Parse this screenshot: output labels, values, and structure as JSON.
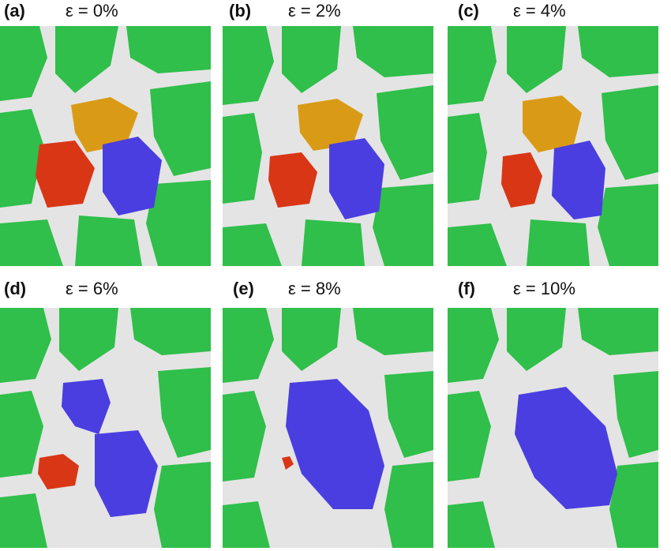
{
  "figure": {
    "panels": [
      {
        "label": "(a)",
        "strain": "ε = 0%"
      },
      {
        "label": "(b)",
        "strain": "ε = 2%"
      },
      {
        "label": "(c)",
        "strain": "ε = 4%"
      },
      {
        "label": "(d)",
        "strain": "ε = 6%"
      },
      {
        "label": "(e)",
        "strain": "ε = 8%"
      },
      {
        "label": "(f)",
        "strain": "ε = 10%"
      }
    ]
  },
  "colors": {
    "background_atoms": "#e6e6e6",
    "matrix_grains": "#2fbf4a",
    "grain_orange": "#d99b16",
    "grain_red": "#d93616",
    "grain_blue": "#4a3ee0"
  }
}
